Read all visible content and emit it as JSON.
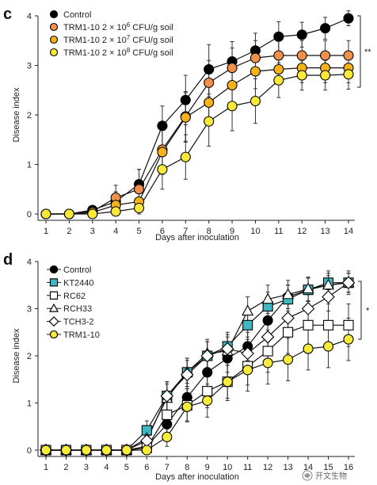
{
  "chart_data": [
    {
      "panel": "c",
      "type": "line",
      "xlabel": "Days after inoculation",
      "ylabel": "Disease index",
      "xlim": [
        1,
        14
      ],
      "ylim": [
        0,
        4
      ],
      "xticks": [
        1,
        2,
        3,
        4,
        5,
        6,
        7,
        8,
        9,
        10,
        11,
        12,
        13,
        14
      ],
      "yticks": [
        0,
        1,
        2,
        3,
        4
      ],
      "grid": false,
      "legend": "top-left",
      "significance": "**",
      "x": [
        1,
        2,
        3,
        4,
        5,
        6,
        7,
        8,
        9,
        10,
        11,
        12,
        13,
        14
      ],
      "series": [
        {
          "name": "Control",
          "marker": "circle",
          "fill": "#000000",
          "stroke": "#000000",
          "values": [
            0.0,
            0.0,
            0.08,
            0.25,
            0.6,
            1.78,
            2.3,
            2.92,
            3.08,
            3.3,
            3.58,
            3.62,
            3.75,
            3.95
          ],
          "errors": [
            0.0,
            0.0,
            0.06,
            0.2,
            0.3,
            0.4,
            0.5,
            0.5,
            0.4,
            0.35,
            0.3,
            0.25,
            0.22,
            0.15
          ]
        },
        {
          "name_prefix": "TRM1-10 2 × 10",
          "name_exp": "6",
          "name_suffix": " CFU/g soil",
          "marker": "circle",
          "fill": "#f0904a",
          "stroke": "#000000",
          "values": [
            0.0,
            0.0,
            0.05,
            0.33,
            0.5,
            1.3,
            1.97,
            2.65,
            2.95,
            3.15,
            3.2,
            3.2,
            3.2,
            3.2
          ],
          "errors": [
            0.0,
            0.0,
            0.05,
            0.25,
            0.4,
            0.45,
            0.5,
            0.45,
            0.4,
            0.35,
            0.3,
            0.3,
            0.3,
            0.3
          ]
        },
        {
          "name_prefix": "TRM1-10 2 × 10",
          "name_exp": "7",
          "name_suffix": " CFU/g soil",
          "marker": "circle",
          "fill": "#f5b21a",
          "stroke": "#000000",
          "values": [
            0.0,
            0.0,
            0.03,
            0.18,
            0.25,
            1.25,
            1.95,
            2.25,
            2.6,
            2.88,
            2.92,
            2.95,
            2.95,
            2.95
          ],
          "errors": [
            0.0,
            0.0,
            0.03,
            0.15,
            0.3,
            0.45,
            0.5,
            0.45,
            0.4,
            0.35,
            0.3,
            0.3,
            0.3,
            0.3
          ]
        },
        {
          "name_prefix": "TRM1-10 2 × 10",
          "name_exp": "8",
          "name_suffix": " CFU/g soil",
          "marker": "circle",
          "fill": "#f8e83a",
          "stroke": "#000000",
          "values": [
            0.0,
            0.0,
            0.0,
            0.05,
            0.12,
            0.9,
            1.15,
            1.87,
            2.18,
            2.28,
            2.7,
            2.8,
            2.8,
            2.82
          ],
          "errors": [
            0.0,
            0.0,
            0.0,
            0.05,
            0.15,
            0.4,
            0.45,
            0.5,
            0.5,
            0.45,
            0.35,
            0.3,
            0.3,
            0.3
          ]
        }
      ]
    },
    {
      "panel": "d",
      "type": "line",
      "xlabel": "Days after inoculation",
      "ylabel": "Disease index",
      "xlim": [
        1,
        16
      ],
      "ylim": [
        0,
        4
      ],
      "xticks": [
        1,
        2,
        3,
        4,
        5,
        6,
        7,
        8,
        9,
        10,
        11,
        12,
        13,
        14,
        15,
        16
      ],
      "yticks": [
        0,
        1,
        2,
        3,
        4
      ],
      "grid": false,
      "legend": "top-left",
      "significance": "*",
      "x": [
        1,
        2,
        3,
        4,
        5,
        6,
        7,
        8,
        9,
        10,
        11,
        12,
        13,
        14,
        15,
        16
      ],
      "series": [
        {
          "name": "Control",
          "marker": "circle",
          "fill": "#000000",
          "stroke": "#000000",
          "values": [
            0,
            0,
            0,
            0,
            0,
            0.08,
            0.55,
            1.12,
            1.65,
            1.95,
            2.2,
            2.75,
            3.25,
            3.4,
            3.5,
            3.55
          ],
          "errors": [
            0,
            0,
            0,
            0,
            0,
            0.1,
            0.25,
            0.3,
            0.3,
            0.3,
            0.3,
            0.3,
            0.25,
            0.25,
            0.2,
            0.2
          ]
        },
        {
          "name": "KT2440",
          "marker": "square",
          "fill": "#3fb8c4",
          "stroke": "#000000",
          "values": [
            0,
            0,
            0,
            0,
            0,
            0.42,
            1.15,
            1.65,
            2.0,
            2.2,
            2.65,
            3.05,
            3.2,
            3.4,
            3.55,
            3.55
          ],
          "errors": [
            0,
            0,
            0,
            0,
            0,
            0.2,
            0.3,
            0.3,
            0.3,
            0.3,
            0.3,
            0.3,
            0.3,
            0.25,
            0.25,
            0.2
          ]
        },
        {
          "name": "RC62",
          "marker": "square",
          "fill": "#ffffff",
          "stroke": "#000000",
          "values": [
            0,
            0,
            0,
            0,
            0,
            0.05,
            0.75,
            0.95,
            1.25,
            1.45,
            1.78,
            2.1,
            2.5,
            2.65,
            2.65,
            2.65
          ],
          "errors": [
            0,
            0,
            0,
            0,
            0,
            0.1,
            0.3,
            0.35,
            0.35,
            0.35,
            0.4,
            0.45,
            0.45,
            0.45,
            0.45,
            0.45
          ]
        },
        {
          "name": "RCH33",
          "marker": "triangle",
          "fill": "#ffffff",
          "stroke": "#000000",
          "values": [
            0,
            0,
            0,
            0,
            0,
            0.25,
            1.1,
            1.65,
            2.05,
            2.1,
            2.95,
            3.2,
            3.3,
            3.42,
            3.5,
            3.55
          ],
          "errors": [
            0,
            0,
            0,
            0,
            0,
            0.2,
            0.3,
            0.3,
            0.3,
            0.3,
            0.3,
            0.3,
            0.3,
            0.25,
            0.25,
            0.2
          ]
        },
        {
          "name": "TCH3-2",
          "marker": "diamond",
          "fill": "#ffffff",
          "stroke": "#000000",
          "values": [
            0,
            0,
            0,
            0,
            0,
            0.2,
            1.15,
            1.6,
            2.0,
            2.15,
            2.05,
            2.4,
            2.8,
            3.0,
            3.25,
            3.55
          ],
          "errors": [
            0,
            0,
            0,
            0,
            0,
            0.2,
            0.3,
            0.3,
            0.3,
            0.3,
            0.35,
            0.35,
            0.35,
            0.3,
            0.3,
            0.25
          ]
        },
        {
          "name": "TRM1-10",
          "marker": "circle",
          "fill": "#f8ec3a",
          "stroke": "#000000",
          "values": [
            0,
            0,
            0,
            0,
            0,
            0.0,
            0.28,
            0.92,
            1.05,
            1.45,
            1.7,
            1.85,
            1.92,
            2.15,
            2.2,
            2.35
          ],
          "errors": [
            0,
            0,
            0,
            0,
            0,
            0.05,
            0.2,
            0.3,
            0.35,
            0.4,
            0.45,
            0.45,
            0.45,
            0.45,
            0.45,
            0.45
          ]
        }
      ]
    }
  ],
  "watermark": "开文生物"
}
